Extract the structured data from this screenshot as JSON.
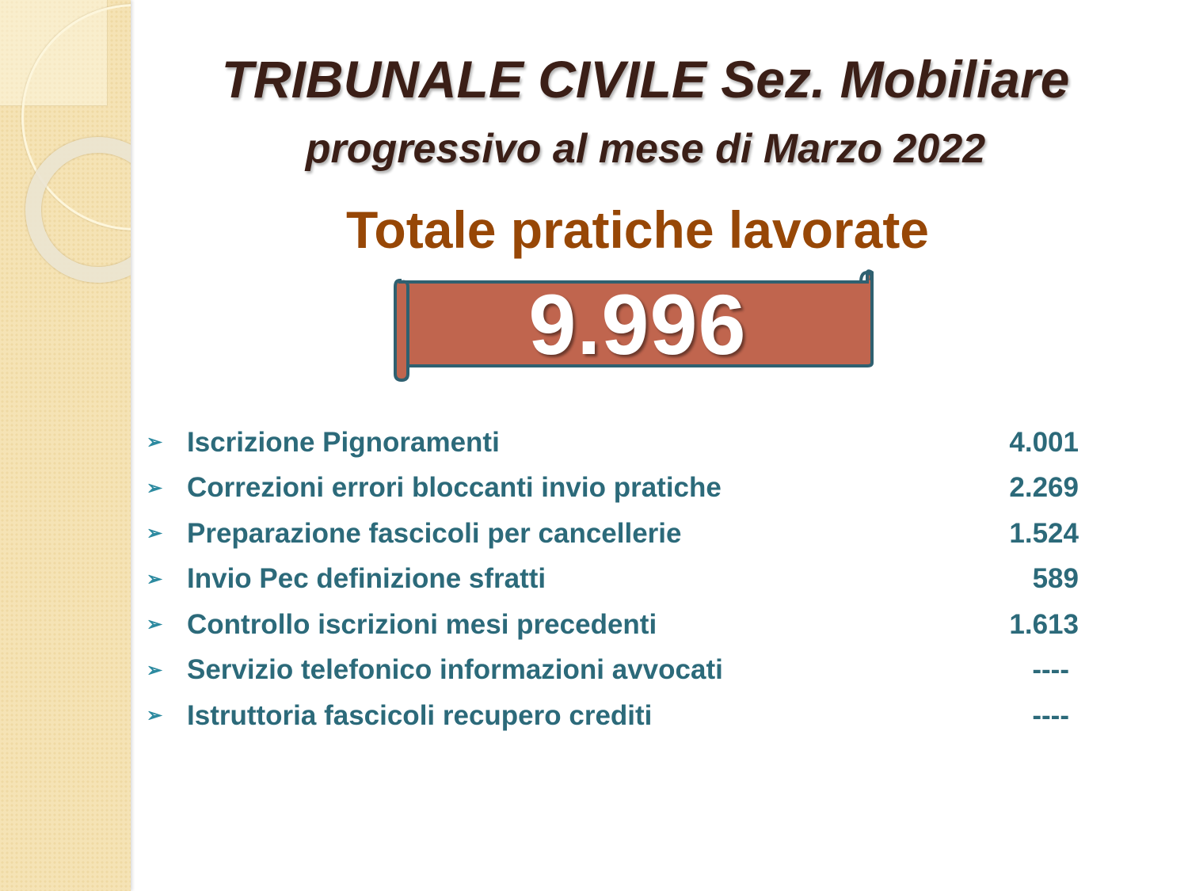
{
  "title": "TRIBUNALE CIVILE Sez. Mobiliare",
  "subtitle": "progressivo al mese di Marzo 2022",
  "heading": "Totale pratiche lavorate",
  "total": "9.996",
  "colors": {
    "title": "#3b1f17",
    "heading": "#974706",
    "list": "#2c6a7a",
    "scroll_fill": "#c0654e",
    "scroll_border": "#2f6070"
  },
  "items": [
    {
      "bullet": "➢",
      "label": "Iscrizione Pignoramenti",
      "value": "4.001"
    },
    {
      "bullet": "➢",
      "label": "Correzioni errori bloccanti invio pratiche",
      "value": "2.269"
    },
    {
      "bullet": "➢",
      "label": "Preparazione fascicoli per cancellerie",
      "value": "1.524"
    },
    {
      "bullet": "➢",
      "label": "Invio Pec definizione sfratti",
      "value": "589"
    },
    {
      "bullet": "➢",
      "label": "Controllo iscrizioni mesi precedenti",
      "value": "1.613"
    },
    {
      "bullet": "➢",
      "label": "Servizio telefonico informazioni avvocati",
      "value": "----"
    },
    {
      "bullet": "➢",
      "label": "Istruttoria fascicoli recupero crediti",
      "value": "----"
    }
  ]
}
